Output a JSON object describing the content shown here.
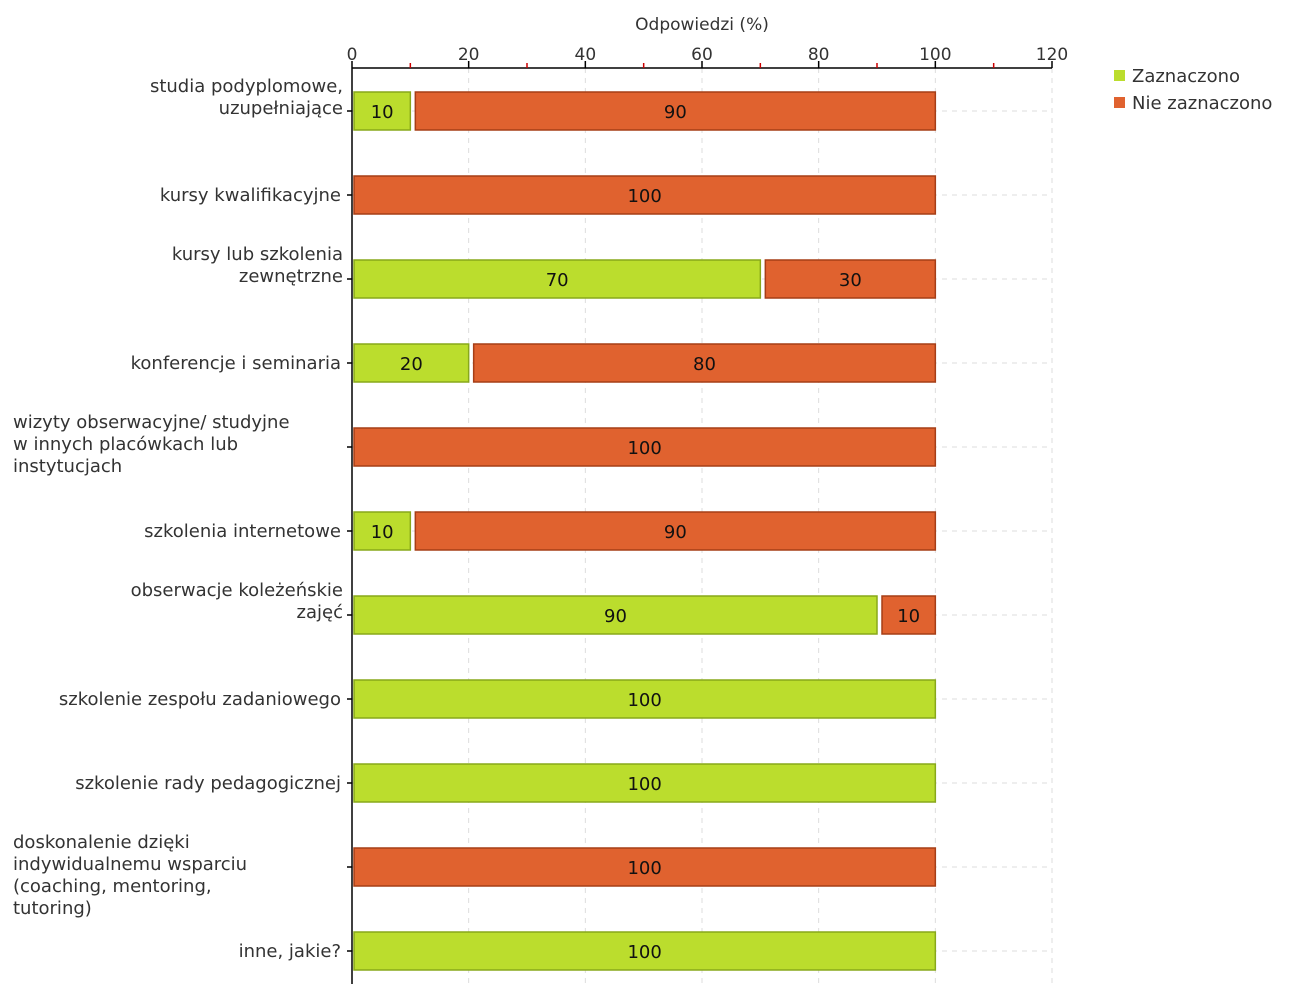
{
  "chart_data": {
    "type": "bar",
    "orientation": "horizontal",
    "stacked": true,
    "xlabel": "Odpowiedzi (%)",
    "ylabel": "",
    "xlim": [
      0,
      120
    ],
    "xticks": [
      0,
      20,
      40,
      60,
      80,
      100,
      120
    ],
    "grid": true,
    "legend_position": "top-right",
    "categories": [
      [
        "studia podyplomowe,",
        "uzupełniające"
      ],
      [
        "kursy kwalifikacyjne"
      ],
      [
        "kursy lub szkolenia",
        "zewnętrzne"
      ],
      [
        "konferencje i seminaria"
      ],
      [
        "wizyty obserwacyjne/ studyjne",
        "w innych placówkach lub",
        "instytucjach"
      ],
      [
        "szkolenia internetowe"
      ],
      [
        "obserwacje koleżeńskie",
        "zajęć"
      ],
      [
        "szkolenie zespołu zadaniowego"
      ],
      [
        "szkolenie rady pedagogicznej"
      ],
      [
        "doskonalenie dzięki",
        "indywidualnemu wsparciu",
        "(coaching, mentoring,",
        "tutoring)"
      ],
      [
        "inne, jakie?"
      ]
    ],
    "series": [
      {
        "name": "Zaznaczono",
        "color": "#bbdd2d",
        "stroke": "#88a81a",
        "values": [
          10,
          0,
          70,
          20,
          0,
          10,
          90,
          100,
          100,
          0,
          100
        ]
      },
      {
        "name": "Nie zaznaczono",
        "color": "#e0622f",
        "stroke": "#a63e17",
        "values": [
          90,
          100,
          30,
          80,
          100,
          90,
          10,
          0,
          0,
          100,
          0
        ]
      }
    ]
  }
}
